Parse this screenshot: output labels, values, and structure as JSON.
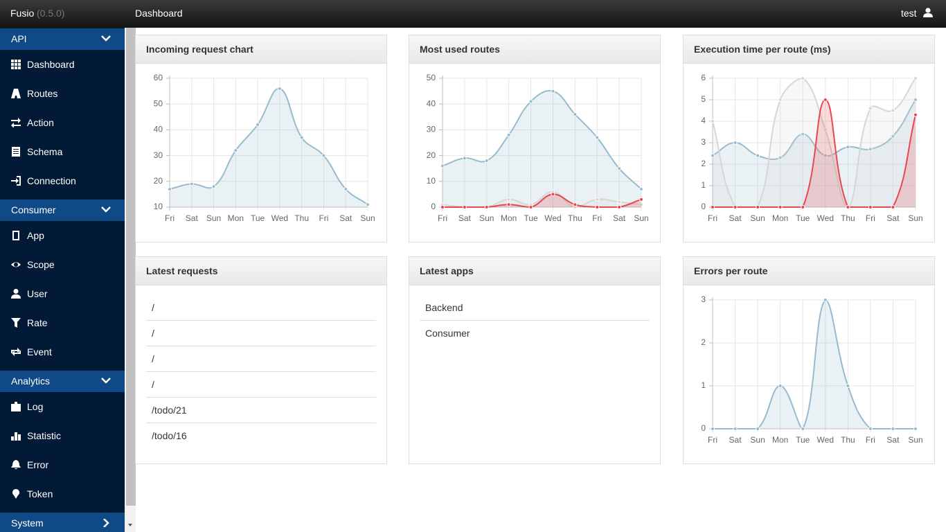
{
  "header": {
    "brand": "Fusio",
    "version": "(0.5.0)",
    "page": "Dashboard",
    "user": "test"
  },
  "sidebar": {
    "sections": [
      {
        "title": "API",
        "items": [
          "Dashboard",
          "Routes",
          "Action",
          "Schema",
          "Connection"
        ]
      },
      {
        "title": "Consumer",
        "items": [
          "App",
          "Scope",
          "User",
          "Rate",
          "Event"
        ]
      },
      {
        "title": "Analytics",
        "items": [
          "Log",
          "Statistic",
          "Error",
          "Token"
        ]
      },
      {
        "title": "System",
        "items": []
      }
    ]
  },
  "chart_data": [
    {
      "type": "line",
      "title": "Incoming request chart",
      "categories": [
        "Fri",
        "Sat",
        "Sun",
        "Mon",
        "Tue",
        "Wed",
        "Thu",
        "Fri",
        "Sat",
        "Sun"
      ],
      "series": [
        {
          "color": "#97bbcd",
          "values": [
            17,
            19,
            18,
            32,
            42,
            56,
            37,
            30,
            17,
            11
          ]
        }
      ],
      "ylim": [
        10,
        60
      ],
      "yticks": [
        10,
        20,
        30,
        40,
        50,
        60
      ],
      "grid": true
    },
    {
      "type": "line",
      "title": "Most used routes",
      "categories": [
        "Fri",
        "Sat",
        "Sun",
        "Mon",
        "Tue",
        "Wed",
        "Thu",
        "Fri",
        "Sat",
        "Sun"
      ],
      "series": [
        {
          "color": "#97bbcd",
          "values": [
            16,
            19,
            18,
            28,
            41,
            45,
            36,
            27,
            15,
            7
          ]
        },
        {
          "color": "#d6d6d6",
          "values": [
            1,
            0,
            0,
            3,
            1,
            6,
            0,
            3,
            2,
            1
          ]
        },
        {
          "color": "#e8474c",
          "values": [
            0,
            0,
            0,
            1,
            0,
            5,
            1,
            0,
            0,
            3
          ]
        }
      ],
      "ylim": [
        0,
        50
      ],
      "yticks": [
        0,
        10,
        20,
        30,
        40,
        50
      ],
      "grid": true
    },
    {
      "type": "line",
      "title": "Execution time per route (ms)",
      "categories": [
        "Fri",
        "Sat",
        "Sun",
        "Mon",
        "Tue",
        "Wed",
        "Thu",
        "Fri",
        "Sat",
        "Sun"
      ],
      "series": [
        {
          "color": "#97bbcd",
          "values": [
            2.4,
            3,
            2.4,
            2.3,
            3.4,
            2.4,
            2.8,
            2.7,
            3.3,
            5
          ]
        },
        {
          "color": "#d6d6d6",
          "values": [
            4,
            0,
            0,
            5,
            6,
            3.6,
            0,
            4.6,
            4.5,
            6
          ]
        },
        {
          "color": "#e8474c",
          "values": [
            0,
            0,
            0,
            0,
            0,
            5,
            0,
            0,
            0,
            4.3
          ]
        }
      ],
      "ylim": [
        0,
        6
      ],
      "yticks": [
        0,
        1,
        2,
        3,
        4,
        5,
        6
      ],
      "grid": true
    },
    {
      "type": "line",
      "title": "Errors per route",
      "categories": [
        "Fri",
        "Sat",
        "Sun",
        "Mon",
        "Tue",
        "Wed",
        "Thu",
        "Fri",
        "Sat",
        "Sun"
      ],
      "series": [
        {
          "color": "#97bbcd",
          "values": [
            0,
            0,
            0,
            1,
            0,
            3,
            1,
            0,
            0,
            0
          ]
        }
      ],
      "ylim": [
        0,
        3
      ],
      "yticks": [
        0,
        1,
        2,
        3
      ],
      "grid": true
    }
  ],
  "latest_requests": {
    "title": "Latest requests",
    "items": [
      "/",
      "/",
      "/",
      "/",
      "/todo/21",
      "/todo/16"
    ]
  },
  "latest_apps": {
    "title": "Latest apps",
    "items": [
      "Backend",
      "Consumer"
    ]
  }
}
